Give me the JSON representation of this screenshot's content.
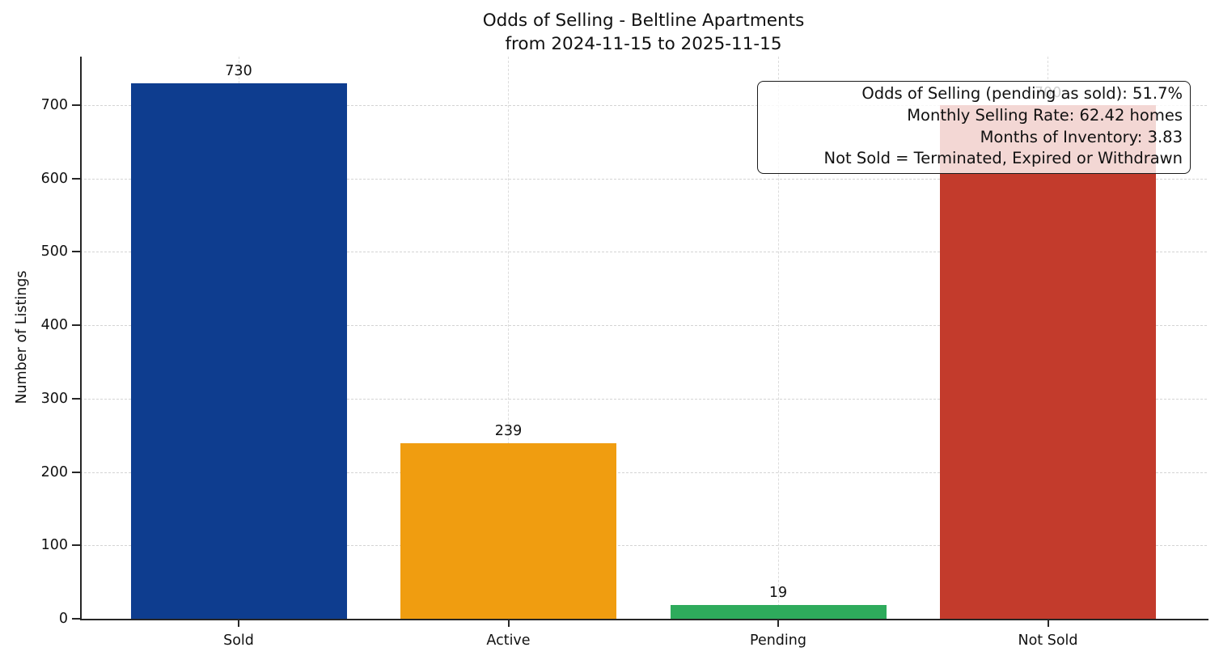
{
  "chart_data": {
    "type": "bar",
    "title": "Odds of Selling - Beltline Apartments",
    "subtitle": "from 2024-11-15 to 2025-11-15",
    "categories": [
      "Sold",
      "Active",
      "Pending",
      "Not Sold"
    ],
    "values": [
      730,
      239,
      19,
      700
    ],
    "colors": [
      "#0e3d8f",
      "#f09d10",
      "#2eab5c",
      "#c33b2c"
    ],
    "xlabel": "",
    "ylabel": "Number of Listings",
    "ylim": [
      0,
      766
    ],
    "yticks": [
      0,
      100,
      200,
      300,
      400,
      500,
      600,
      700
    ],
    "grid": "dashed, horizontal and vertical",
    "legend": null,
    "annotations": [
      "Odds of Selling (pending as sold): 51.7%",
      "Monthly Selling Rate: 62.42 homes",
      "Months of Inventory: 3.83",
      "Not Sold = Terminated, Expired or Withdrawn"
    ]
  }
}
